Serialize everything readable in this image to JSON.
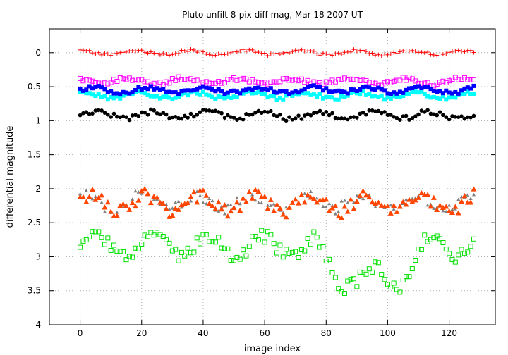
{
  "chart_data": {
    "type": "scatter",
    "title": "Pluto unfilt 8-pix diff mag, Mar 18 2007 UT",
    "xlabel": "image index",
    "ylabel": "differential magnitude",
    "xlim": [
      -10,
      135
    ],
    "ylim": [
      4,
      -0.35
    ],
    "y_axis_inverted": true,
    "grid": true,
    "legend": "none",
    "x_ticks": [
      "0",
      "20",
      "40",
      "60",
      "80",
      "100",
      "120"
    ],
    "x_tick_values": [
      0,
      20,
      40,
      60,
      80,
      100,
      120
    ],
    "y_ticks": [
      "0",
      "0.5",
      "1",
      "1.5",
      "2",
      "2.5",
      "3",
      "3.5",
      "4"
    ],
    "y_tick_values": [
      0,
      0.5,
      1,
      1.5,
      2,
      2.5,
      3,
      3.5,
      4
    ],
    "series": [
      {
        "marker": "plus",
        "color": "#ff0000",
        "base": 0.0,
        "spread": 0.03,
        "noise": 0.02,
        "seed": 11,
        "nfirst": 0,
        "nlast": 128
      },
      {
        "marker": "square-filled",
        "color": "#00ffff",
        "base": 0.63,
        "spread": 0.04,
        "noise": 0.03,
        "seed": 23,
        "nfirst": 0,
        "nlast": 128
      },
      {
        "marker": "square-open",
        "color": "#ff00ff",
        "base": 0.42,
        "spread": 0.04,
        "noise": 0.03,
        "seed": 37,
        "nfirst": 0,
        "nlast": 128
      },
      {
        "marker": "square-filled",
        "color": "#0000ff",
        "base": 0.55,
        "spread": 0.04,
        "noise": 0.03,
        "seed": 41,
        "nfirst": 0,
        "nlast": 128
      },
      {
        "marker": "circle-filled",
        "color": "#000000",
        "base": 0.92,
        "spread": 0.05,
        "noise": 0.04,
        "seed": 53,
        "nfirst": 0,
        "nlast": 128
      },
      {
        "marker": "triangle-filled",
        "color": "#808080",
        "base": 2.2,
        "spread": 0.1,
        "noise": 0.08,
        "seed": 67,
        "nfirst": 0,
        "nlast": 128
      },
      {
        "marker": "triangle-filled",
        "color": "#ff4500",
        "base": 2.22,
        "spread": 0.12,
        "noise": 0.1,
        "seed": 79,
        "nfirst": 0,
        "nlast": 128
      },
      {
        "marker": "square-open",
        "color": "#00e000",
        "base": 2.85,
        "spread": 0.15,
        "noise": 0.1,
        "seed": 97,
        "nfirst": 0,
        "nlast": 128,
        "dip": {
          "start": 76,
          "end": 112,
          "depth": 0.45
        }
      }
    ]
  }
}
